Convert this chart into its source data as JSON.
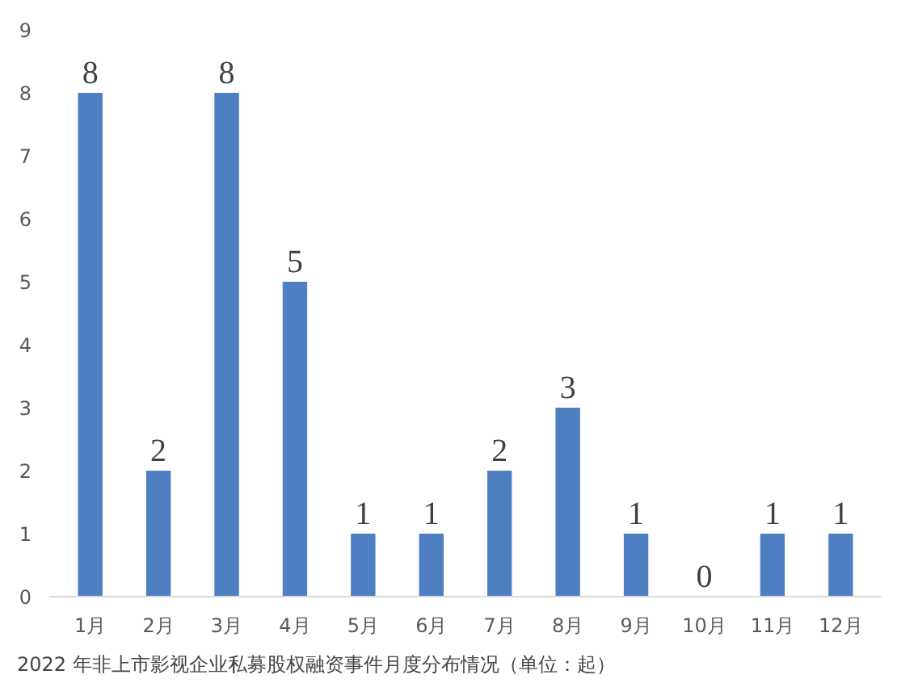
{
  "chart_data": {
    "type": "bar",
    "title": "2022 年非上市影视企业私募股权融资事件月度分布情况（单位：起）",
    "categories": [
      "1月",
      "2月",
      "3月",
      "4月",
      "5月",
      "6月",
      "7月",
      "8月",
      "9月",
      "10月",
      "11月",
      "12月"
    ],
    "values": [
      8,
      2,
      8,
      5,
      1,
      1,
      2,
      3,
      1,
      0,
      1,
      1
    ],
    "color": "#4e7fc2",
    "ylim": [
      0,
      9
    ],
    "yticks": [
      0,
      1,
      2,
      3,
      4,
      5,
      6,
      7,
      8,
      9
    ],
    "grid": false,
    "data_labels": true
  }
}
